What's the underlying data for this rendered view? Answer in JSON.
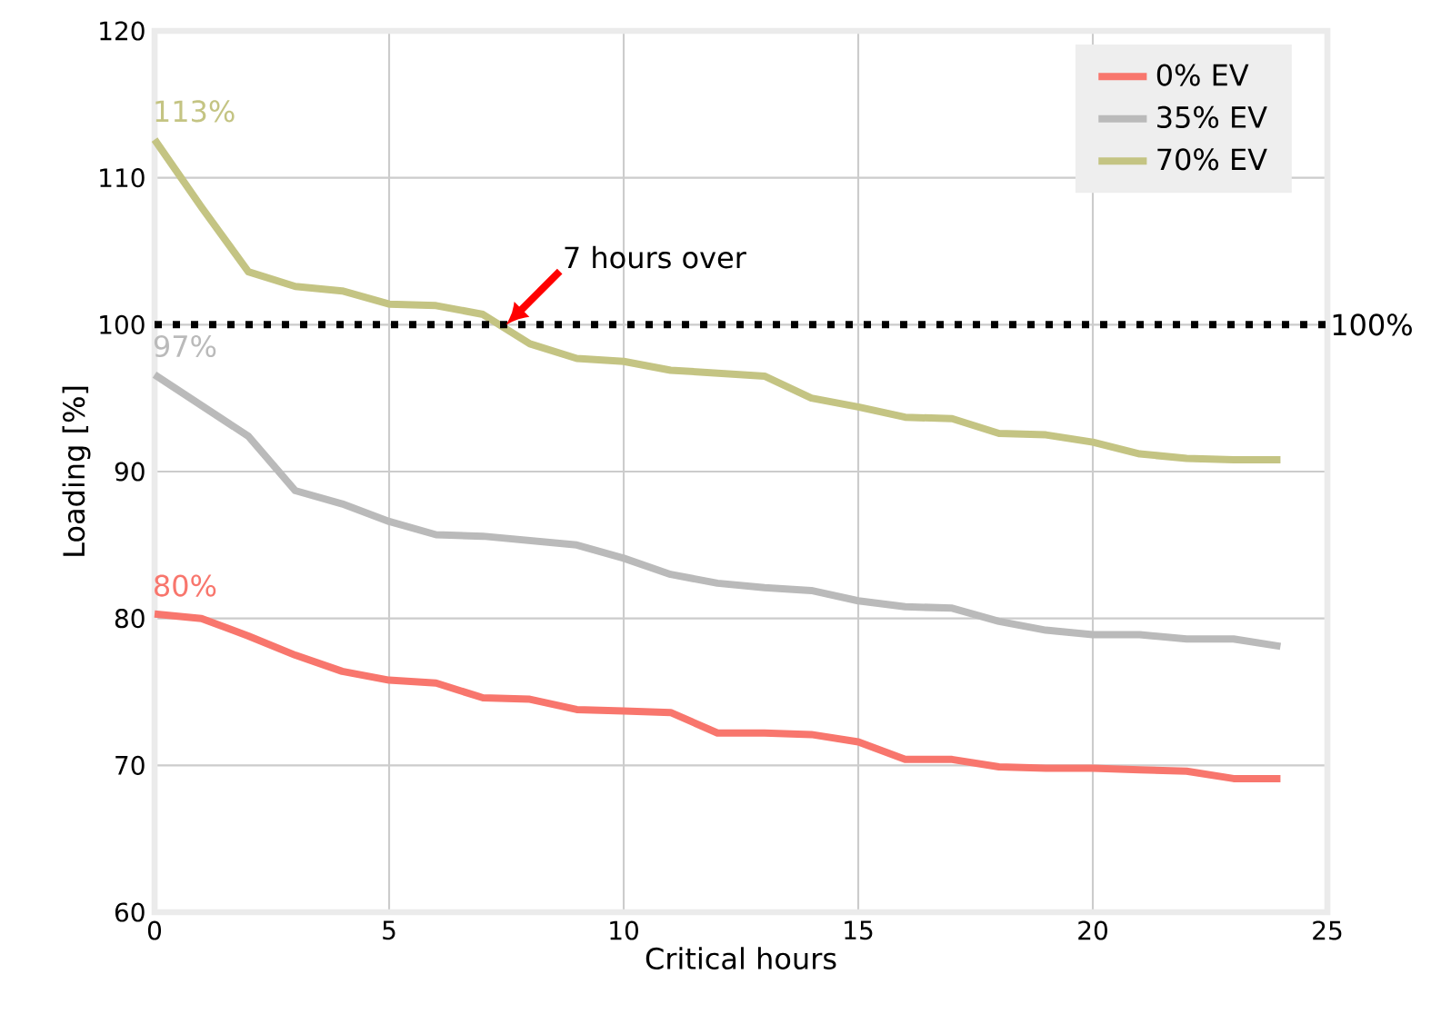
{
  "chart_data": {
    "type": "line",
    "xlabel": "Critical hours",
    "ylabel": "Loading [%]",
    "x": [
      0,
      1,
      2,
      3,
      4,
      5,
      6,
      7,
      8,
      9,
      10,
      11,
      12,
      13,
      14,
      15,
      16,
      17,
      18,
      19,
      20,
      21,
      22,
      23,
      24
    ],
    "series": [
      {
        "name": "0% EV",
        "color": "#f8766d",
        "values": [
          80.3,
          80.0,
          78.8,
          77.5,
          76.4,
          75.8,
          75.6,
          74.6,
          74.5,
          73.8,
          73.7,
          73.6,
          72.2,
          72.2,
          72.1,
          71.6,
          70.4,
          70.4,
          69.9,
          69.8,
          69.8,
          69.7,
          69.6,
          69.1,
          69.1
        ]
      },
      {
        "name": "35% EV",
        "color": "#bababa",
        "values": [
          96.6,
          94.5,
          92.4,
          88.7,
          87.8,
          86.6,
          85.7,
          85.6,
          85.3,
          85.0,
          84.1,
          83.0,
          82.4,
          82.1,
          81.9,
          81.2,
          80.8,
          80.7,
          79.8,
          79.2,
          78.9,
          78.9,
          78.6,
          78.6,
          78.1
        ]
      },
      {
        "name": "70% EV",
        "color": "#c4c483",
        "values": [
          112.6,
          108.0,
          103.6,
          102.6,
          102.3,
          101.4,
          101.3,
          100.7,
          98.7,
          97.7,
          97.5,
          96.9,
          96.7,
          96.5,
          95.0,
          94.4,
          93.7,
          93.6,
          92.6,
          92.5,
          92.0,
          91.2,
          90.9,
          90.8,
          90.8
        ]
      }
    ],
    "annotations": [
      "80%",
      "97%",
      "113%",
      {
        "text": "7 hours over",
        "x": 7.5,
        "y": 100
      }
    ],
    "ref_lines": [
      {
        "axis": "y",
        "value": 100,
        "label": "100%",
        "color": "#000000",
        "line_style": "dotted"
      }
    ],
    "xlim": [
      0,
      25
    ],
    "ylim": [
      60,
      120
    ],
    "xticks": [
      0,
      5,
      10,
      15,
      20,
      25
    ],
    "yticks": [
      60,
      70,
      80,
      90,
      100,
      110,
      120
    ],
    "grid": true,
    "legend": "top right",
    "line_style": "solid",
    "marker": "none"
  }
}
